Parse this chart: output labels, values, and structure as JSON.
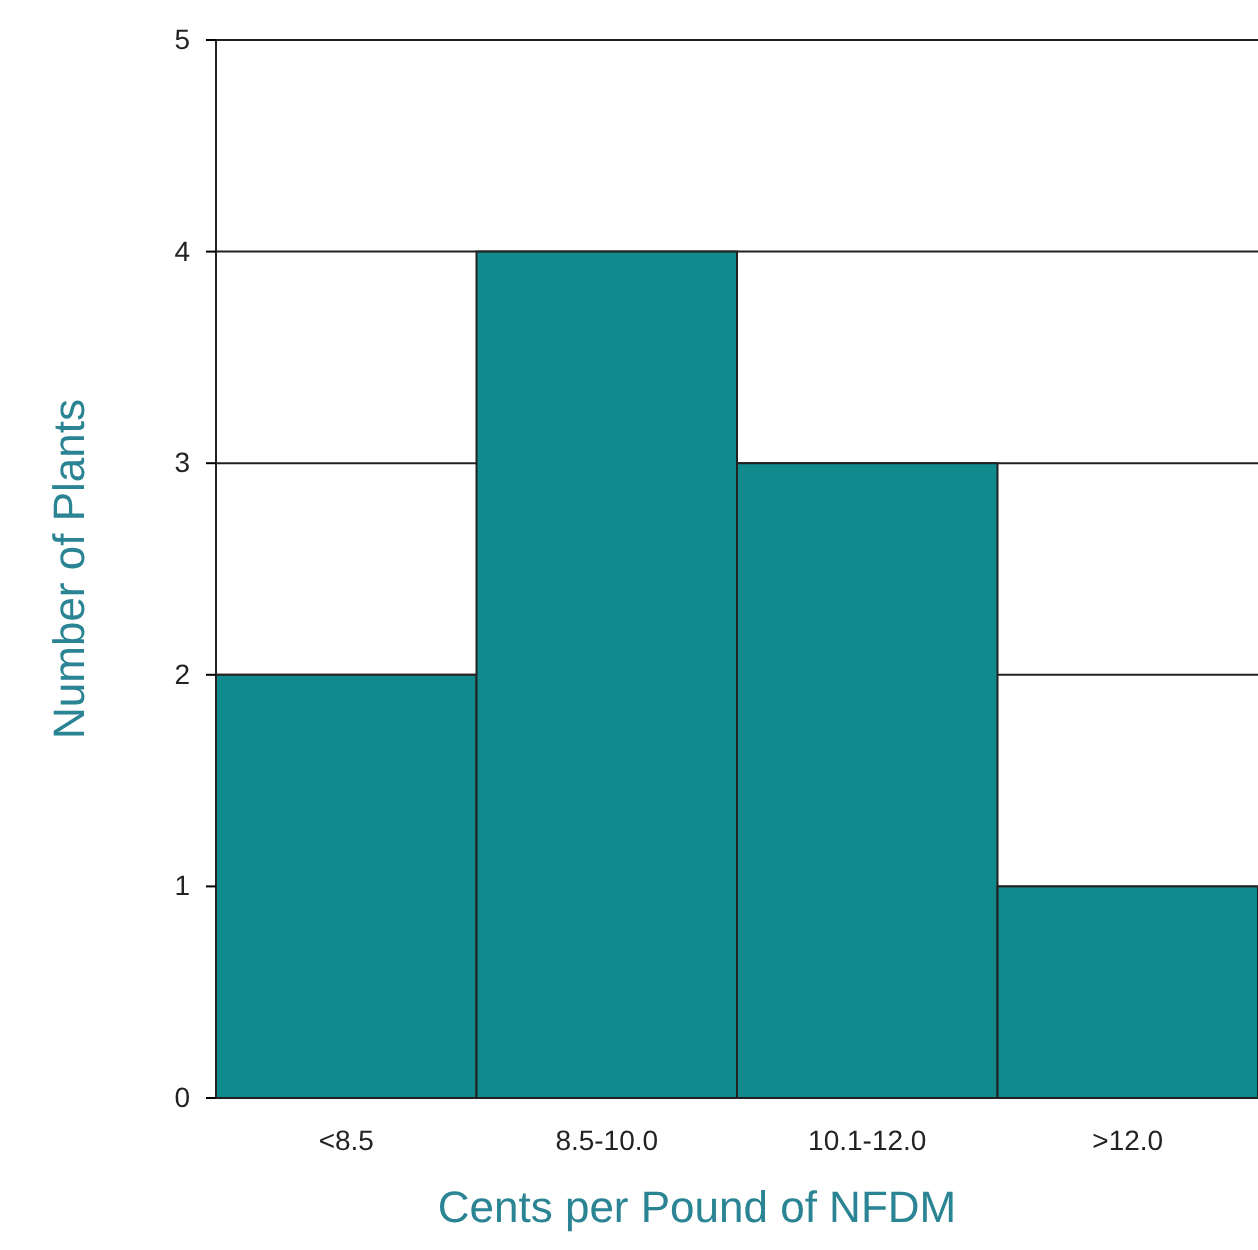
{
  "chart_data": {
    "type": "bar",
    "xlabel": "Cents per Pound of NFDM",
    "ylabel": "Number of Plants",
    "categories": [
      "<8.5",
      "8.5-10.0",
      "10.1-12.0",
      ">12.0"
    ],
    "values": [
      2,
      4,
      3,
      1
    ],
    "color": "#108a8c",
    "ylim": [
      0,
      5
    ],
    "yticks": [
      0,
      1,
      2,
      3,
      4,
      5
    ],
    "grid": "y"
  }
}
